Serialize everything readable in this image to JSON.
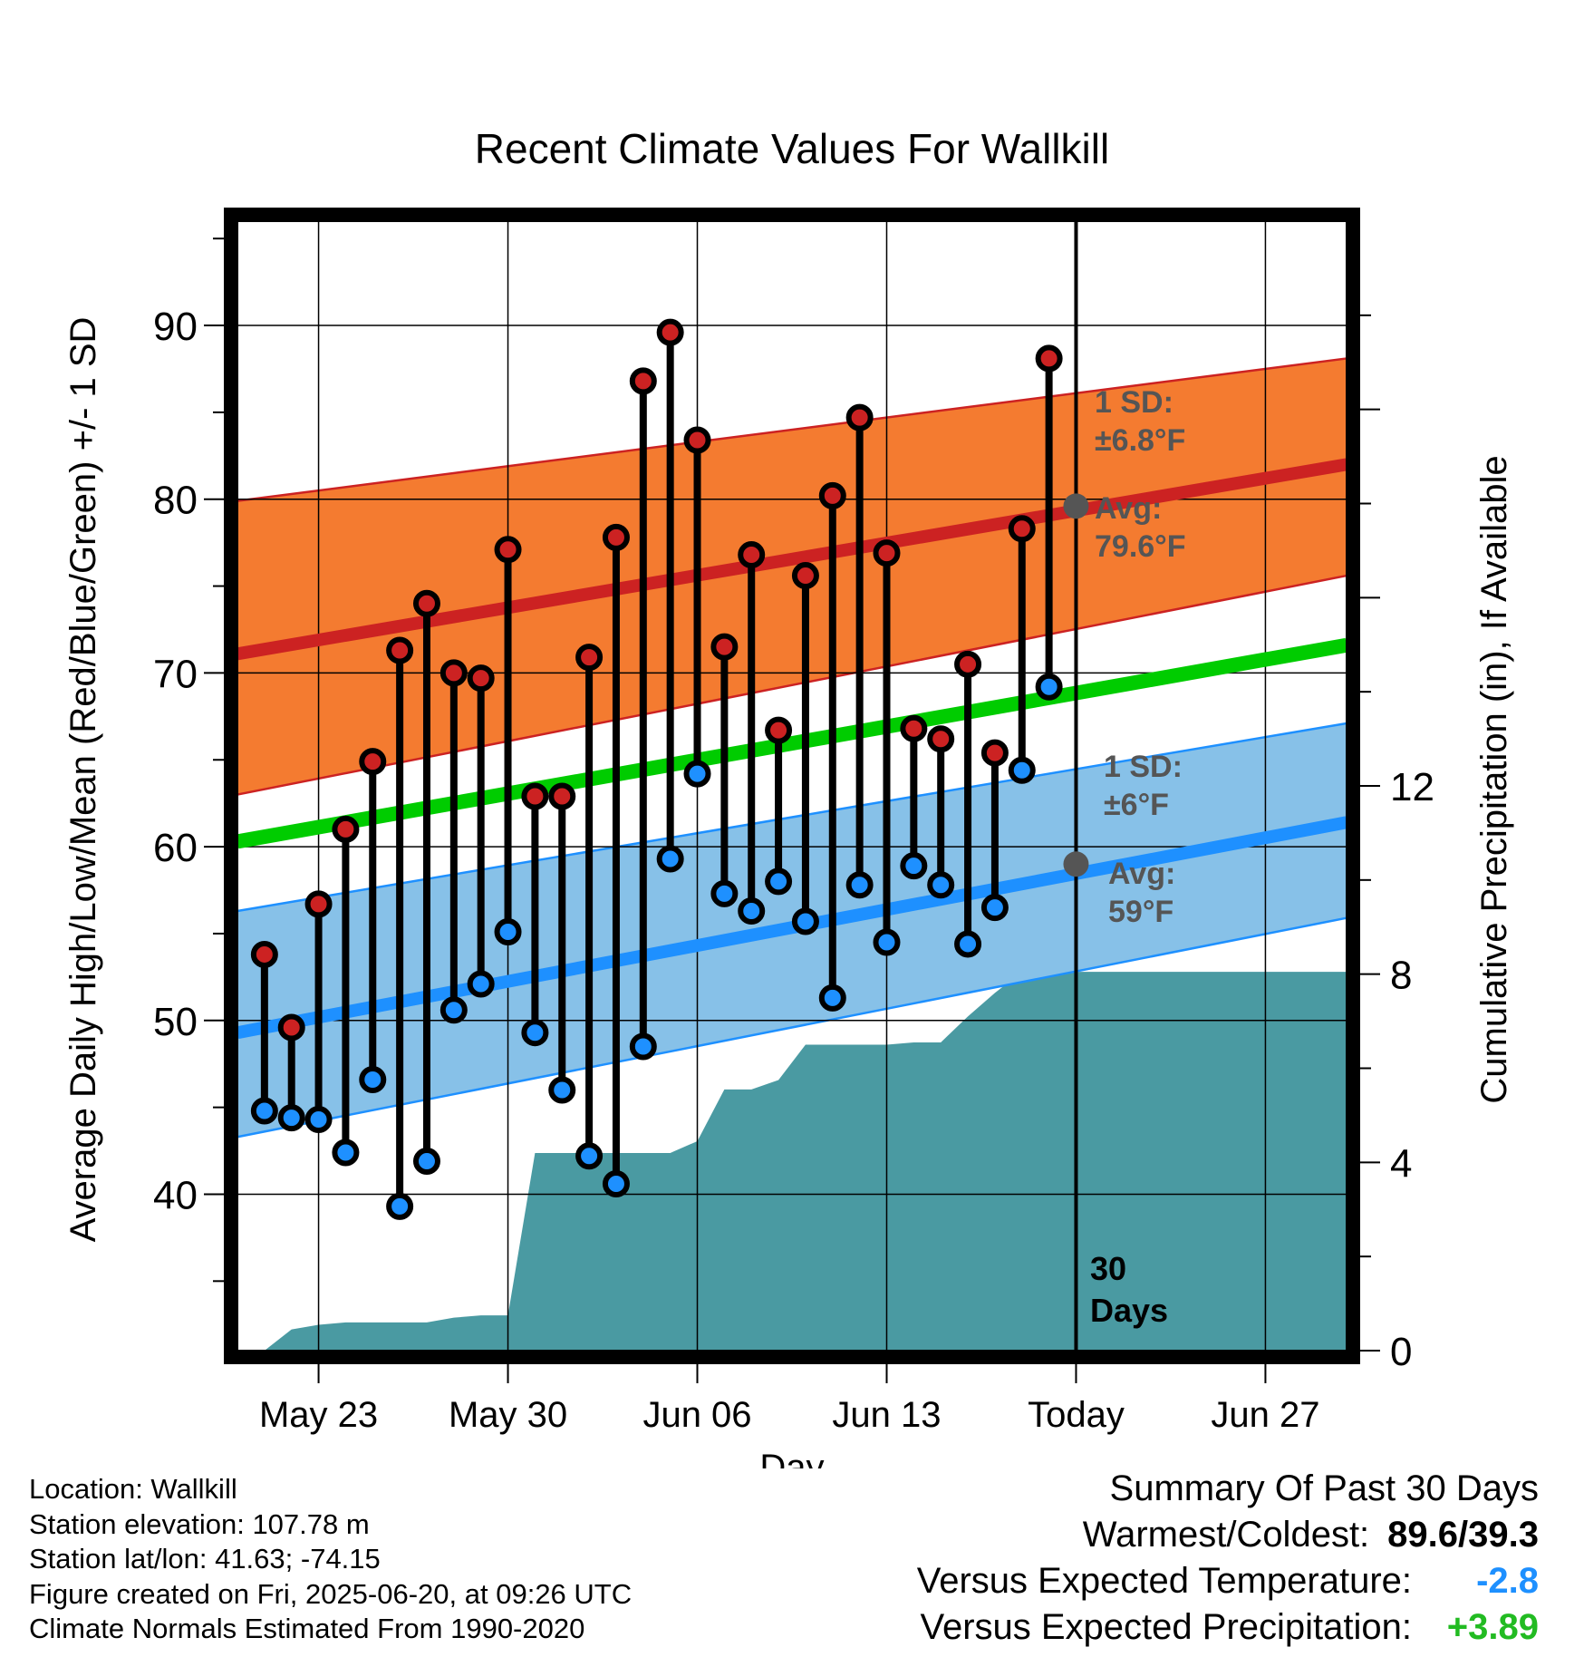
{
  "chart_data": {
    "type": "line",
    "title": "Recent Climate Values For Wallkill",
    "xlabel": "Day",
    "ylabel": "Average Daily High/Low/Mean (Red/Blue/Green) +/- 1 SD",
    "y2label": "Cumulative Precipitation (in), If Available",
    "x_range": [
      "May 20",
      "Jun 30"
    ],
    "ylim": [
      31,
      96
    ],
    "y2lim": [
      0,
      24
    ],
    "y_ticks": [
      "40",
      "50",
      "60",
      "70",
      "80",
      "90"
    ],
    "y2_ticks": [
      "0",
      "4",
      "8",
      "12"
    ],
    "x_ticks": [
      {
        "date": "May 23",
        "label": "May 23"
      },
      {
        "date": "May 30",
        "label": "May 30"
      },
      {
        "date": "Jun 06",
        "label": "Jun 06"
      },
      {
        "date": "Jun 13",
        "label": "Jun 13"
      },
      {
        "date": "Jun 20",
        "label": "Today"
      },
      {
        "date": "Jun 27",
        "label": "Jun 27"
      }
    ],
    "grid": true,
    "normals": {
      "high_avg": {
        "start": [
          "May 20",
          71.1
        ],
        "end": [
          "Jun 30",
          82.0
        ],
        "color": "#cc2222"
      },
      "high_sd_band": {
        "upper_start": 79.9,
        "upper_end": 88.1,
        "lower_start": 63.0,
        "lower_end": 75.6,
        "color": "#f47b30"
      },
      "mean_avg": {
        "start": [
          "May 20",
          60.3
        ],
        "end": [
          "Jun 30",
          71.6
        ],
        "color": "#00cc00"
      },
      "low_avg": {
        "start": [
          "May 20",
          49.3
        ],
        "end": [
          "Jun 30",
          61.4
        ],
        "color": "#1e90ff"
      },
      "low_sd_band": {
        "upper_start": 56.3,
        "upper_end": 67.1,
        "lower_start": 43.3,
        "lower_end": 55.9,
        "color": "#87c1e8"
      }
    },
    "observed": {
      "dates": [
        "May 21",
        "May 22",
        "May 23",
        "May 24",
        "May 25",
        "May 26",
        "May 27",
        "May 28",
        "May 29",
        "May 30",
        "May 31",
        "Jun 01",
        "Jun 02",
        "Jun 03",
        "Jun 04",
        "Jun 05",
        "Jun 06",
        "Jun 07",
        "Jun 08",
        "Jun 09",
        "Jun 10",
        "Jun 11",
        "Jun 12",
        "Jun 13",
        "Jun 14",
        "Jun 15",
        "Jun 16",
        "Jun 17",
        "Jun 18",
        "Jun 19"
      ],
      "high": [
        53.8,
        49.6,
        56.7,
        61.0,
        64.9,
        71.3,
        74.0,
        70.0,
        69.7,
        77.1,
        62.9,
        62.9,
        70.9,
        77.8,
        86.8,
        89.6,
        83.4,
        71.5,
        76.8,
        66.7,
        75.6,
        80.2,
        84.7,
        76.9,
        66.8,
        66.2,
        70.5,
        65.4,
        78.3,
        88.1
      ],
      "low": [
        44.8,
        44.4,
        44.3,
        42.4,
        46.6,
        39.3,
        41.9,
        50.6,
        52.1,
        55.1,
        49.3,
        46.0,
        42.2,
        40.6,
        48.5,
        59.3,
        64.2,
        57.3,
        56.3,
        58.0,
        55.7,
        51.3,
        57.8,
        54.5,
        58.9,
        57.8,
        54.4,
        56.5,
        64.4,
        69.2
      ],
      "high_color": "#cc2222",
      "low_color": "#1e90ff"
    },
    "precipitation": {
      "dates": [
        "May 20",
        "May 21",
        "May 22",
        "May 23",
        "May 24",
        "May 25",
        "May 26",
        "May 27",
        "May 28",
        "May 29",
        "May 30",
        "May 31",
        "Jun 01",
        "Jun 02",
        "Jun 03",
        "Jun 04",
        "Jun 05",
        "Jun 06",
        "Jun 07",
        "Jun 08",
        "Jun 09",
        "Jun 10",
        "Jun 11",
        "Jun 12",
        "Jun 13",
        "Jun 14",
        "Jun 15",
        "Jun 16",
        "Jun 17",
        "Jun 18",
        "Jun 19",
        "Jun 30"
      ],
      "cumulative": [
        0,
        0.0,
        0.45,
        0.55,
        0.6,
        0.6,
        0.6,
        0.6,
        0.7,
        0.75,
        0.75,
        4.2,
        4.2,
        4.2,
        4.2,
        4.2,
        4.2,
        4.45,
        5.55,
        5.55,
        5.75,
        6.5,
        6.5,
        6.5,
        6.5,
        6.55,
        6.55,
        7.1,
        7.6,
        8.05,
        8.05,
        8.05
      ],
      "color": "#4a9aa2"
    },
    "annotations": {
      "high_sd_line1": "1 SD:",
      "high_sd_line2": "±6.8°F",
      "high_avg_line1": "Avg:",
      "high_avg_line2": "79.6°F",
      "low_sd_line1": "1 SD:",
      "low_sd_line2": "±6°F",
      "low_avg_line1": "Avg:",
      "low_avg_line2": "59°F",
      "today_high_avg": 79.6,
      "today_low_avg": 59.0,
      "days_line1": "30",
      "days_line2": "Days",
      "annotation_color": "#555555"
    }
  },
  "footer": {
    "location": "Location: Wallkill",
    "elevation": "Station elevation: 107.78 m",
    "latlon": "Station lat/lon: 41.63; -74.15",
    "created": "Figure created on Fri, 2025-06-20, at 09:26 UTC",
    "normals": "Climate Normals Estimated From 1990-2020"
  },
  "summary": {
    "title": "Summary Of Past 30 Days",
    "warm_cold_label": "Warmest/Coldest:",
    "warm_cold_value": "89.6/39.3",
    "temp_label": "Versus Expected Temperature:",
    "temp_value": "-2.8",
    "temp_color": "#1e90ff",
    "precip_label": "Versus Expected Precipitation:",
    "precip_value": "+3.89",
    "precip_color": "#22bb22"
  }
}
